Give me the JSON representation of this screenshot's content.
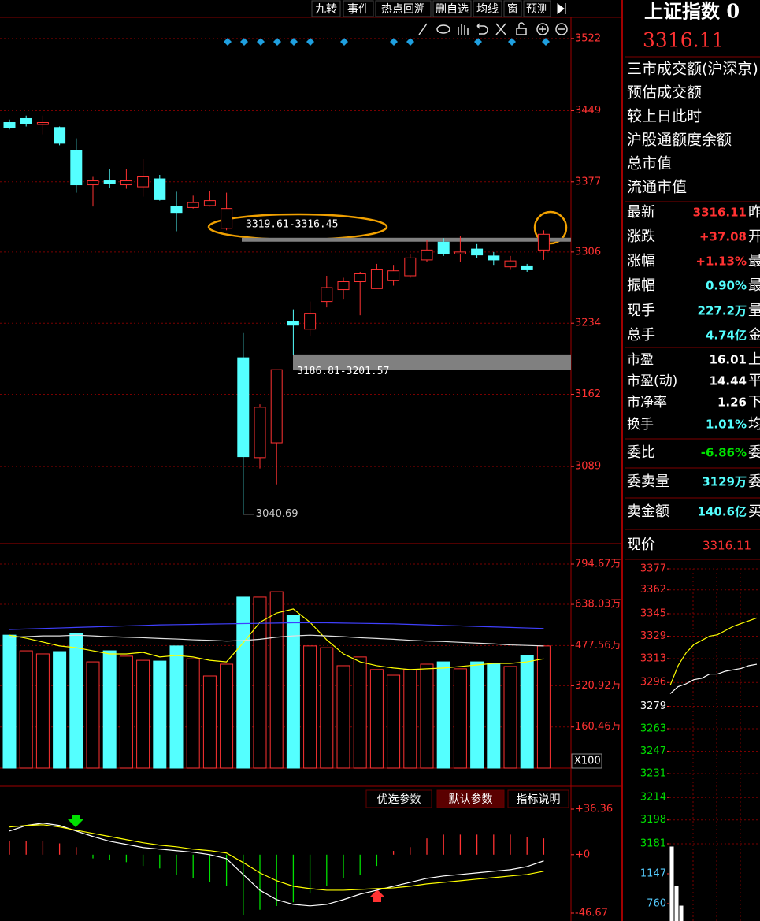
{
  "toolbar": [
    "九转",
    "事件",
    "热点回溯",
    "删自选",
    "均线",
    "窗",
    "预测"
  ],
  "chart_data": [
    {
      "type": "candlestick",
      "open": [
        3437,
        3441,
        3435,
        3432,
        3409,
        3374,
        3378,
        3374,
        3372,
        3380,
        3352,
        3351,
        3353,
        3330,
        3199,
        3098,
        3113,
        3236,
        3228,
        3256,
        3268,
        3276,
        3269,
        3277,
        3282,
        3298,
        3316,
        3304,
        3309,
        3302,
        3291,
        3292,
        3308
      ],
      "high": [
        3440,
        3444,
        3444,
        3433,
        3421,
        3382,
        3390,
        3390,
        3400,
        3384,
        3367,
        3363,
        3368,
        3366,
        3224,
        3152,
        3187,
        3248,
        3256,
        3282,
        3280,
        3286,
        3294,
        3293,
        3304,
        3318,
        3320,
        3322,
        3314,
        3306,
        3302,
        3294,
        3328
      ],
      "low": [
        3430,
        3433,
        3425,
        3414,
        3366,
        3352,
        3371,
        3370,
        3362,
        3358,
        3327,
        3350,
        3352,
        3328,
        3040.69,
        3087,
        3071,
        3202,
        3221,
        3250,
        3258,
        3242,
        3269,
        3272,
        3280,
        3296,
        3302,
        3296,
        3300,
        3293,
        3288,
        3286,
        3298
      ],
      "close": [
        3432,
        3436,
        3437,
        3416,
        3374,
        3378,
        3375,
        3378,
        3382,
        3359,
        3346,
        3356,
        3358,
        3350,
        3099,
        3149,
        3187,
        3232,
        3244,
        3270,
        3276,
        3284,
        3288,
        3287,
        3300,
        3308,
        3304,
        3306,
        3303,
        3298,
        3297,
        3288,
        3324
      ],
      "up_color": "#ff3232",
      "down_color": "#54ffff",
      "ylim": [
        3011,
        3545
      ],
      "yticks": [
        3522,
        3449,
        3377,
        3306,
        3234,
        3162,
        3089
      ],
      "grid": true,
      "gap_annotations": [
        {
          "label": "3319.61-3316.45",
          "low": 3316.45,
          "high": 3319.61
        },
        {
          "label": "3186.81-3201.57",
          "low": 3186.81,
          "high": 3201.57
        }
      ],
      "low_label": 3040.69
    },
    {
      "type": "bar",
      "values": [
        518,
        457,
        445,
        454,
        525,
        414,
        457,
        436,
        420,
        417,
        476,
        426,
        359,
        405,
        666,
        666,
        687,
        595,
        476,
        469,
        399,
        433,
        384,
        362,
        384,
        405,
        414,
        387,
        414,
        408,
        396,
        439,
        476
      ],
      "colors": [
        "#54ffff",
        "#ff3232",
        "#ff3232",
        "#54ffff",
        "#54ffff",
        "#ff3232",
        "#54ffff",
        "#ff3232",
        "#ff3232",
        "#54ffff",
        "#54ffff",
        "#ff3232",
        "#ff3232",
        "#ff3232",
        "#54ffff",
        "#ff3232",
        "#ff3232",
        "#54ffff",
        "#ff3232",
        "#ff3232",
        "#ff3232",
        "#ff3232",
        "#ff3232",
        "#ff3232",
        "#ff3232",
        "#ff3232",
        "#54ffff",
        "#ff3232",
        "#54ffff",
        "#54ffff",
        "#ff3232",
        "#54ffff",
        "#ff3232"
      ],
      "lines": [
        {
          "color": "#ffff00",
          "values": [
            518,
            506,
            491,
            476,
            469,
            457,
            445,
            445,
            451,
            433,
            439,
            433,
            420,
            414,
            488,
            568,
            604,
            620,
            568,
            500,
            445,
            414,
            399,
            390,
            384,
            387,
            390,
            396,
            402,
            408,
            408,
            414,
            426
          ]
        },
        {
          "color": "#e0e0e0",
          "values": [
            510,
            512,
            515,
            515,
            518,
            515,
            512,
            510,
            508,
            505,
            503,
            500,
            498,
            495,
            497,
            502,
            510,
            515,
            518,
            515,
            512,
            508,
            505,
            502,
            498,
            495,
            493,
            490,
            487,
            484,
            480,
            478,
            476
          ]
        },
        {
          "color": "#4040ff",
          "values": [
            540,
            542,
            544,
            546,
            548,
            550,
            552,
            554,
            556,
            558,
            559,
            560,
            561,
            562,
            563,
            564,
            565,
            566,
            566,
            566,
            565,
            564,
            563,
            562,
            560,
            558,
            556,
            554,
            552,
            550,
            548,
            546,
            544
          ]
        }
      ],
      "ylim": [
        0,
        794.67
      ],
      "yticks": [
        {
          "value": 794.67,
          "label": "794.67万"
        },
        {
          "value": 638.03,
          "label": "638.03万"
        },
        {
          "value": 477.56,
          "label": "477.56万"
        },
        {
          "value": 320.92,
          "label": "320.92万"
        },
        {
          "value": 160.46,
          "label": "160.46万"
        }
      ],
      "grid": true,
      "unit_label": "X100"
    },
    {
      "type": "macd",
      "values": [
        11,
        11,
        11,
        9,
        6,
        -3,
        -4,
        -6,
        -9,
        -11,
        -16,
        -19,
        -22,
        -25,
        -48,
        -44,
        -41,
        -38,
        -31,
        -25,
        -19,
        -16,
        -9,
        3,
        6,
        13,
        16,
        16,
        16,
        16,
        16,
        14,
        13
      ],
      "up_color": "#ff3232",
      "down_color": "#00e000",
      "lines": [
        {
          "color": "#ffffff",
          "values": [
            18.9,
            23.3,
            25.2,
            23.3,
            18.9,
            14.5,
            10.7,
            8.2,
            5.7,
            4.4,
            3.2,
            1.9,
            0,
            -3.2,
            -15.8,
            -28.4,
            -35.9,
            -39.7,
            -40.9,
            -39.7,
            -35.9,
            -31.5,
            -28.4,
            -25.2,
            -22.1,
            -18.9,
            -17,
            -15.8,
            -14.5,
            -13.2,
            -12,
            -9.5,
            -5
          ]
        },
        {
          "color": "#ffff00",
          "values": [
            22.1,
            23.3,
            23.9,
            22.1,
            19.5,
            17,
            14.5,
            12,
            9.5,
            7.6,
            6.3,
            4.4,
            3.2,
            1.3,
            -6.3,
            -14.5,
            -20.8,
            -25.2,
            -27.1,
            -28.4,
            -28.4,
            -27.7,
            -27.1,
            -26.5,
            -25.2,
            -23.3,
            -22.1,
            -20.8,
            -19.5,
            -18.3,
            -17,
            -15.8,
            -13.2
          ]
        }
      ],
      "ylim": [
        -46.67,
        36.36
      ],
      "yticks": [
        {
          "value": 36.36,
          "label": "+36.36"
        },
        {
          "value": 0,
          "label": "+0"
        },
        -46.67
      ],
      "buttons": [
        "优选参数",
        "默认参数",
        "指标说明"
      ]
    },
    {
      "type": "line",
      "lines": [
        {
          "color": "#ffffff",
          "values": [
            3288,
            3293,
            3295,
            3298,
            3299,
            3302,
            3302,
            3304,
            3305,
            3306,
            3308,
            3309
          ]
        },
        {
          "color": "#ffff00",
          "values": [
            3294,
            3308,
            3317,
            3323,
            3326,
            3329,
            3330,
            3333,
            3336,
            3338,
            3340,
            3342
          ]
        }
      ],
      "ylim": [
        3181,
        3377
      ],
      "yticks": [
        3377,
        3362,
        3345,
        3329,
        3313,
        3296,
        3279,
        3263,
        3247,
        3231,
        3214,
        3198,
        3181
      ],
      "grid": true
    },
    {
      "type": "bar",
      "values": [
        1493,
        984,
        729
      ],
      "colors": [
        "#ffffff",
        "#ffffff",
        "#ffffff"
      ],
      "ylim": [
        536,
        1493
      ],
      "yticks": [
        1147,
        760
      ]
    }
  ],
  "quote_panel": {
    "title": "上证指数 0",
    "price": "3316.11",
    "market_rows": [
      "三市成交额(沪深京)",
      "预估成交额",
      "较上日此时",
      "沪股通额度余额",
      "总市值",
      "流通市值"
    ],
    "stats": [
      {
        "label": "最新",
        "value": "3316.11",
        "tail": "昨",
        "color": "#ff3232"
      },
      {
        "label": "涨跌",
        "value": "+37.08",
        "tail": "开",
        "color": "#ff3232"
      },
      {
        "label": "涨幅",
        "value": "+1.13%",
        "tail": "最",
        "color": "#ff3232"
      },
      {
        "label": "振幅",
        "value": "0.90%",
        "tail": "最",
        "color": "#54ffff"
      },
      {
        "label": "现手",
        "value": "227.2万",
        "tail": "量",
        "color": "#54ffff"
      },
      {
        "label": "总手",
        "value": "4.74亿",
        "tail": "金",
        "color": "#54ffff"
      },
      {
        "label": "市盈",
        "value": "16.01",
        "tail": "上",
        "color": "#ffffff"
      },
      {
        "label": "市盈(动)",
        "value": "14.44",
        "tail": "平",
        "color": "#ffffff"
      },
      {
        "label": "市净率",
        "value": "1.26",
        "tail": "下",
        "color": "#ffffff"
      },
      {
        "label": "换手",
        "value": "1.01%",
        "tail": "均",
        "color": "#54ffff"
      },
      {
        "label": "委比",
        "value": "-6.86%",
        "tail": "委",
        "color": "#00e000"
      },
      {
        "label": "委卖量",
        "value": "3129万",
        "tail": "委",
        "color": "#54ffff"
      },
      {
        "label": "卖金额",
        "value": "140.6亿",
        "tail": "买",
        "color": "#54ffff"
      }
    ],
    "current_label": "现价",
    "current_value": "3316.11"
  }
}
